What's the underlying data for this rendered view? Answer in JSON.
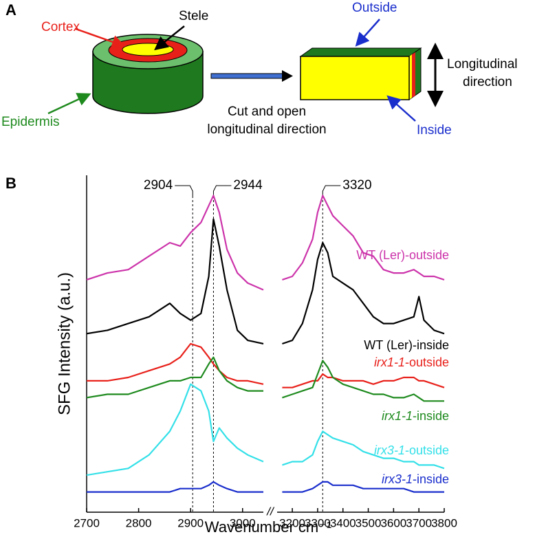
{
  "panel_a": {
    "panel_label": "A",
    "cortex": "Cortex",
    "stele": "Stele",
    "epidermis": "Epidermis",
    "cut_label": [
      "Cut and open",
      "longitudinal direction"
    ],
    "outside": "Outside",
    "inside": "Inside",
    "direction_label": [
      "Longitudinal",
      "direction"
    ]
  },
  "chart_data": {
    "type": "line",
    "panel_label": "B",
    "x_label": "Wavenumber cm⁻¹",
    "y_label": "SFG Intensity (a.u.)",
    "ylim": [
      0,
      100
    ],
    "x_segments": [
      {
        "xlim": [
          2700,
          3040
        ],
        "xticks": [
          2700,
          2800,
          2900,
          3000
        ]
      },
      {
        "xlim": [
          3140,
          3800
        ],
        "xticks": [
          3200,
          3300,
          3400,
          3500,
          3600,
          3700,
          3800
        ]
      }
    ],
    "axis_break": "//",
    "peaks": [
      2904,
      2944,
      3320
    ],
    "x": [
      2700,
      2740,
      2780,
      2820,
      2860,
      2880,
      2900,
      2920,
      2935,
      2944,
      2955,
      2970,
      2990,
      3010,
      3040,
      3100,
      3160,
      3200,
      3240,
      3280,
      3300,
      3320,
      3340,
      3360,
      3400,
      3440,
      3480,
      3520,
      3560,
      3600,
      3640,
      3680,
      3700,
      3720,
      3760,
      3800
    ],
    "series": [
      {
        "name": "WT (Ler)-outside",
        "color": "#cc33aa",
        "values": [
          69,
          71,
          72,
          76,
          80,
          79,
          83,
          86,
          91,
          94,
          89,
          78,
          71,
          68,
          66,
          null,
          69,
          70,
          74,
          81,
          89,
          94,
          91,
          88,
          85,
          82,
          77,
          76,
          72,
          71,
          71,
          72,
          71,
          70,
          70,
          69
        ]
      },
      {
        "name": "WT (Ler)-inside",
        "color": "#000000",
        "values": [
          53,
          54,
          56,
          58,
          62,
          59,
          57,
          59,
          70,
          87,
          79,
          66,
          54,
          51,
          50,
          null,
          50,
          51,
          56,
          66,
          75,
          80,
          77,
          70,
          68,
          66,
          62,
          58,
          56,
          56,
          57,
          58,
          64,
          57,
          54,
          53
        ]
      },
      {
        "name": "irx1-1-outside",
        "color": "#e8201a",
        "values": [
          39,
          39,
          40,
          42,
          44,
          46,
          50,
          49,
          46,
          44,
          42,
          40,
          39,
          39,
          38,
          null,
          37,
          37,
          38,
          39,
          39,
          41,
          40,
          40,
          39,
          39,
          39,
          38,
          39,
          39,
          40,
          40,
          39,
          39,
          38,
          37
        ]
      },
      {
        "name": "irx1-1-inside",
        "color": "#1e8a1e",
        "values": [
          34,
          35,
          35,
          37,
          39,
          39,
          40,
          40,
          44,
          46,
          42,
          39,
          37,
          36,
          36,
          null,
          34,
          35,
          36,
          37,
          41,
          45,
          43,
          40,
          38,
          37,
          36,
          35,
          35,
          34,
          34,
          35,
          34,
          33,
          33,
          33
        ]
      },
      {
        "name": "irx3-1-outside",
        "color": "#33e0e8",
        "values": [
          11,
          12,
          13,
          17,
          24,
          30,
          38,
          36,
          30,
          21,
          25,
          22,
          19,
          17,
          15,
          null,
          14,
          15,
          15,
          17,
          21,
          24,
          23,
          22,
          21,
          20,
          18,
          17,
          16,
          16,
          15,
          15,
          14,
          14,
          14,
          13
        ]
      },
      {
        "name": "irx3-1-inside",
        "color": "#1a2ecc",
        "values": [
          6,
          6,
          6,
          6,
          6,
          7,
          7,
          7,
          8,
          9,
          8,
          7,
          6,
          6,
          6,
          null,
          6,
          6,
          6,
          7,
          8,
          9,
          9,
          8,
          8,
          8,
          7,
          7,
          7,
          7,
          7,
          6,
          6,
          6,
          6,
          6
        ]
      }
    ]
  }
}
